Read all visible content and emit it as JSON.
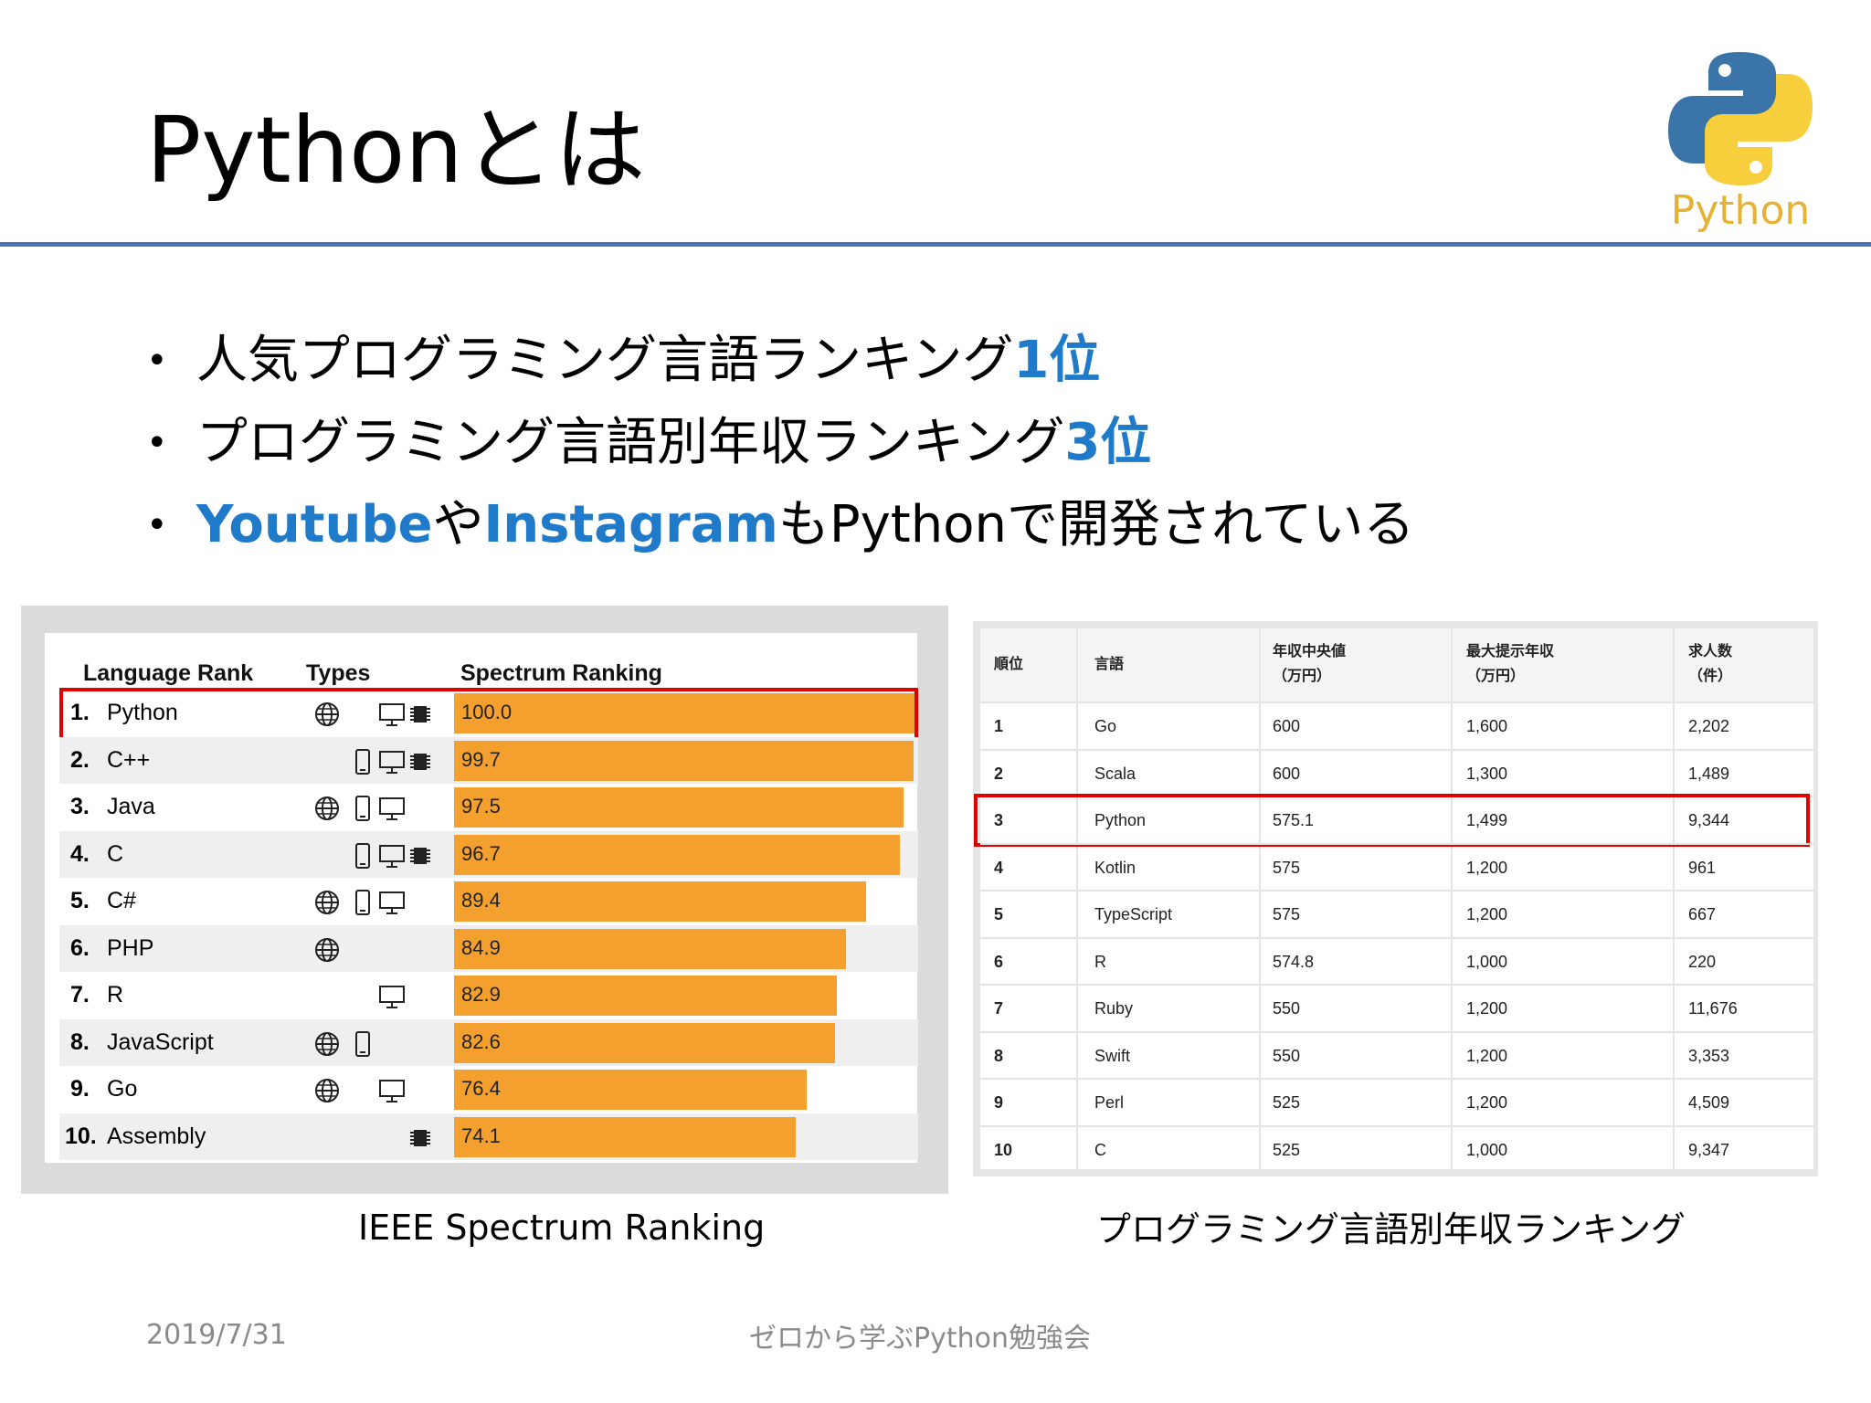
{
  "title": "Pythonとは",
  "logo": {
    "word": "Python",
    "colors": {
      "blue": "#3b74a8",
      "yellow": "#f7cf3c"
    }
  },
  "bullets": [
    {
      "parts": [
        {
          "text": "人気プログラミング言語ランキング",
          "hl": false
        },
        {
          "text": "1位",
          "hl": true
        }
      ]
    },
    {
      "parts": [
        {
          "text": "プログラミング言語別年収ランキング",
          "hl": false
        },
        {
          "text": "3位",
          "hl": true
        }
      ]
    },
    {
      "parts": [
        {
          "text": "Youtube",
          "hl": true
        },
        {
          "text": "や",
          "hl": false
        },
        {
          "text": "Instagram",
          "hl": true
        },
        {
          "text": "もPythonで開発されている",
          "hl": false
        }
      ]
    }
  ],
  "ieee": {
    "headers": {
      "rank": "Language Rank",
      "types": "Types",
      "spectrum": "Spectrum Ranking"
    },
    "rows": [
      {
        "rank": "1.",
        "name": "Python",
        "value": 100.0,
        "value_label": "100.0",
        "types": [
          "web",
          "desktop",
          "embedded"
        ]
      },
      {
        "rank": "2.",
        "name": "C++",
        "value": 99.7,
        "value_label": "99.7",
        "types": [
          "mobile",
          "desktop",
          "embedded"
        ]
      },
      {
        "rank": "3.",
        "name": "Java",
        "value": 97.5,
        "value_label": "97.5",
        "types": [
          "web",
          "mobile",
          "desktop"
        ]
      },
      {
        "rank": "4.",
        "name": "C",
        "value": 96.7,
        "value_label": "96.7",
        "types": [
          "mobile",
          "desktop",
          "embedded"
        ]
      },
      {
        "rank": "5.",
        "name": "C#",
        "value": 89.4,
        "value_label": "89.4",
        "types": [
          "web",
          "mobile",
          "desktop"
        ]
      },
      {
        "rank": "6.",
        "name": "PHP",
        "value": 84.9,
        "value_label": "84.9",
        "types": [
          "web"
        ]
      },
      {
        "rank": "7.",
        "name": "R",
        "value": 82.9,
        "value_label": "82.9",
        "types": [
          "desktop"
        ]
      },
      {
        "rank": "8.",
        "name": "JavaScript",
        "value": 82.6,
        "value_label": "82.6",
        "types": [
          "web",
          "mobile"
        ]
      },
      {
        "rank": "9.",
        "name": "Go",
        "value": 76.4,
        "value_label": "76.4",
        "types": [
          "web",
          "desktop"
        ]
      },
      {
        "rank": "10.",
        "name": "Assembly",
        "value": 74.1,
        "value_label": "74.1",
        "types": [
          "embedded"
        ]
      }
    ],
    "bar_color": "#f4a02e",
    "highlight_rank": "1."
  },
  "salary": {
    "headers": {
      "rank": "順位",
      "lang": "言語",
      "median_1": "年収中央値",
      "median_2": "（万円）",
      "max_1": "最大提示年収",
      "max_2": "（万円）",
      "jobs_1": "求人数",
      "jobs_2": "（件）"
    },
    "rows": [
      {
        "rank": "1",
        "lang": "Go",
        "median": "600",
        "max": "1,600",
        "jobs": "2,202"
      },
      {
        "rank": "2",
        "lang": "Scala",
        "median": "600",
        "max": "1,300",
        "jobs": "1,489"
      },
      {
        "rank": "3",
        "lang": "Python",
        "median": "575.1",
        "max": "1,499",
        "jobs": "9,344"
      },
      {
        "rank": "4",
        "lang": "Kotlin",
        "median": "575",
        "max": "1,200",
        "jobs": "961"
      },
      {
        "rank": "5",
        "lang": "TypeScript",
        "median": "575",
        "max": "1,200",
        "jobs": "667"
      },
      {
        "rank": "6",
        "lang": "R",
        "median": "574.8",
        "max": "1,000",
        "jobs": "220"
      },
      {
        "rank": "7",
        "lang": "Ruby",
        "median": "550",
        "max": "1,200",
        "jobs": "11,676"
      },
      {
        "rank": "8",
        "lang": "Swift",
        "median": "550",
        "max": "1,200",
        "jobs": "3,353"
      },
      {
        "rank": "9",
        "lang": "Perl",
        "median": "525",
        "max": "1,200",
        "jobs": "4,509"
      },
      {
        "rank": "10",
        "lang": "C",
        "median": "525",
        "max": "1,000",
        "jobs": "9,347"
      }
    ],
    "highlight_rank": "3"
  },
  "captions": {
    "left": "IEEE Spectrum Ranking",
    "right": "プログラミング言語別年収ランキング"
  },
  "footer": {
    "date": "2019/7/31",
    "center": "ゼロから学ぶPython勉強会"
  },
  "highlight_color": "#e00000"
}
